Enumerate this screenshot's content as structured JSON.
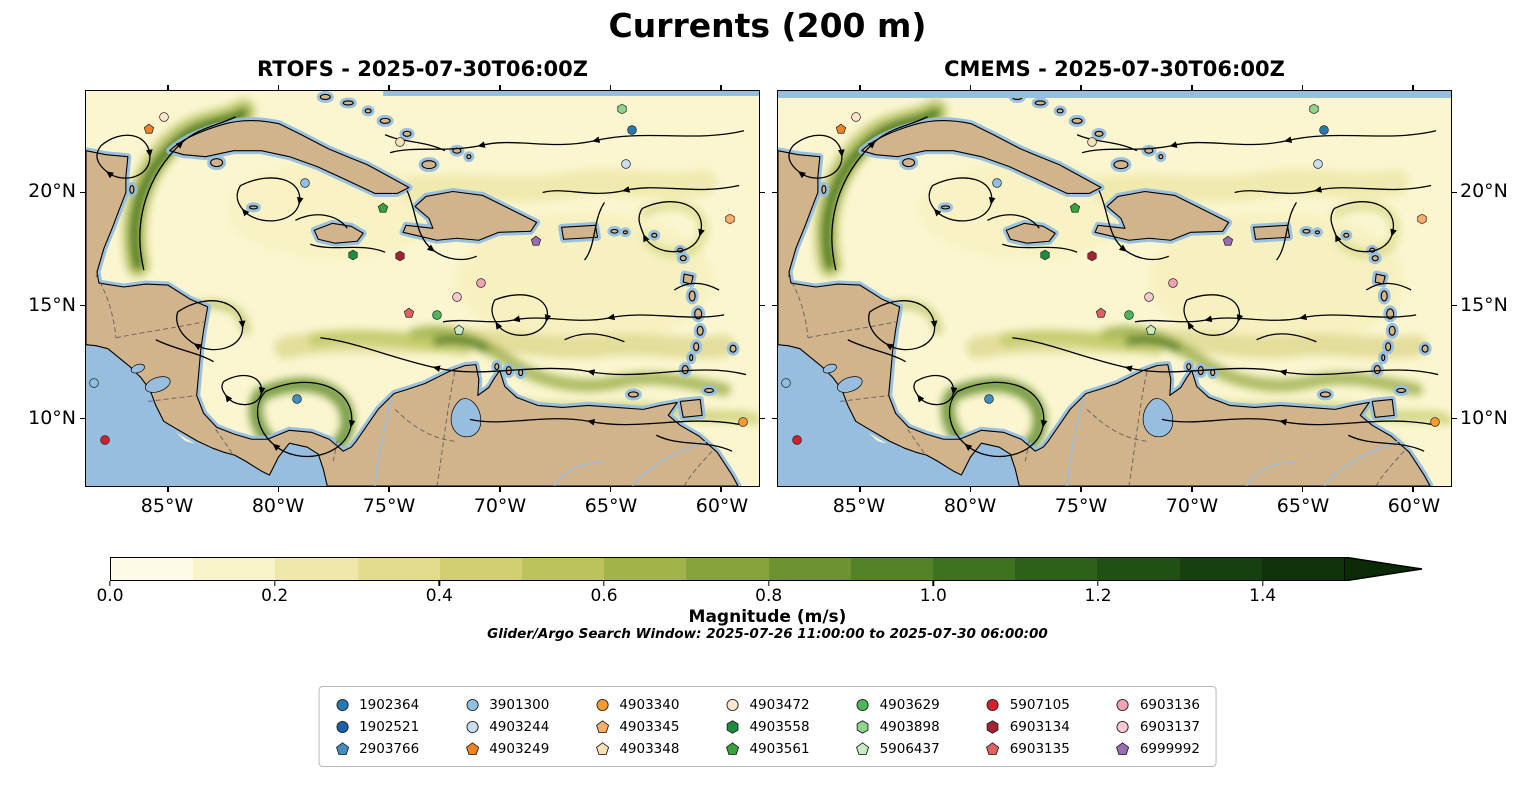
{
  "title": "Currents (200 m)",
  "panels": [
    {
      "model": "RTOFS",
      "title": "RTOFS - 2025-07-30T06:00Z"
    },
    {
      "model": "CMEMS",
      "title": "CMEMS - 2025-07-30T06:00Z"
    }
  ],
  "axes": {
    "lat_ticks": [
      "20°N",
      "15°N",
      "10°N"
    ],
    "lon_ticks": [
      "85°W",
      "80°W",
      "75°W",
      "70°W",
      "65°W",
      "60°W"
    ]
  },
  "colorbar": {
    "label": "Magnitude (m/s)",
    "ticks": [
      "0.0",
      "0.2",
      "0.4",
      "0.6",
      "0.8",
      "1.0",
      "1.2",
      "1.4"
    ],
    "vmin": 0.0,
    "vmax": 1.5,
    "extend": "max",
    "colors": [
      "#fdfbe5",
      "#f8f3c8",
      "#efe8aa",
      "#e3db8d",
      "#d2cf73",
      "#bcc35d",
      "#a2b34a",
      "#87a33b",
      "#6c9330",
      "#538326",
      "#3e721e",
      "#2d6118",
      "#205013",
      "#16400f",
      "#0f320b"
    ],
    "arrow_color": "#0a2a08"
  },
  "search_window_note": "Glider/Argo Search Window: 2025-07-26 11:00:00 to 2025-07-30 06:00:00",
  "map_colors": {
    "land": "#d2b48c",
    "no_data_ocean": "#97bede",
    "coastline": "#000000",
    "streamline": "#000000"
  },
  "legend": {
    "entries": [
      {
        "id": "1902364",
        "marker": "circle",
        "color": "#2678b2"
      },
      {
        "id": "1902521",
        "marker": "circle",
        "color": "#1b5fa5"
      },
      {
        "id": "2903766",
        "marker": "pentagon",
        "color": "#3f8fc5"
      },
      {
        "id": "3901300",
        "marker": "circle",
        "color": "#8ec0e2"
      },
      {
        "id": "4903244",
        "marker": "circle",
        "color": "#c9dff0"
      },
      {
        "id": "4903249",
        "marker": "pentagon",
        "color": "#f58220"
      },
      {
        "id": "4903340",
        "marker": "circle",
        "color": "#fd9b30"
      },
      {
        "id": "4903345",
        "marker": "pentagon",
        "color": "#fdae6b"
      },
      {
        "id": "4903348",
        "marker": "pentagon",
        "color": "#fbe0b8"
      },
      {
        "id": "4903472",
        "marker": "circle",
        "color": "#fde6cd"
      },
      {
        "id": "4903558",
        "marker": "hexagon",
        "color": "#1e8c3e"
      },
      {
        "id": "4903561",
        "marker": "pentagon",
        "color": "#39a23c"
      },
      {
        "id": "4903629",
        "marker": "circle",
        "color": "#4cb75a"
      },
      {
        "id": "4903898",
        "marker": "hexagon",
        "color": "#8fd48c"
      },
      {
        "id": "5906437",
        "marker": "pentagon",
        "color": "#c9ecc2"
      },
      {
        "id": "5907105",
        "marker": "circle",
        "color": "#d31f2e"
      },
      {
        "id": "6903134",
        "marker": "hexagon",
        "color": "#a32332"
      },
      {
        "id": "6903135",
        "marker": "pentagon",
        "color": "#e2615e"
      },
      {
        "id": "6903136",
        "marker": "circle",
        "color": "#f2a3b3"
      },
      {
        "id": "6903137",
        "marker": "circle",
        "color": "#f9c9d2"
      },
      {
        "id": "6999992",
        "marker": "pentagon",
        "color": "#9a6ab2"
      }
    ]
  },
  "map_markers": [
    {
      "shape": "pentagon",
      "color": "#f58220",
      "x": 9.3,
      "y": 9.6
    },
    {
      "shape": "circle",
      "color": "#fde6cd",
      "x": 11.6,
      "y": 6.6
    },
    {
      "shape": "circle",
      "color": "#fbe0b8",
      "x": 46.7,
      "y": 12.8
    },
    {
      "shape": "hexagon",
      "color": "#8fd48c",
      "x": 79.6,
      "y": 4.5
    },
    {
      "shape": "circle",
      "color": "#2678b2",
      "x": 81.2,
      "y": 9.8
    },
    {
      "shape": "circle",
      "color": "#c9dff0",
      "x": 80.3,
      "y": 18.4
    },
    {
      "shape": "circle",
      "color": "#8ec0e2",
      "x": 32.6,
      "y": 23.4
    },
    {
      "shape": "pentagon",
      "color": "#39a23c",
      "x": 44.1,
      "y": 29.5
    },
    {
      "shape": "hexagon",
      "color": "#fdae6b",
      "x": 95.7,
      "y": 32.5
    },
    {
      "shape": "pentagon",
      "color": "#9a6ab2",
      "x": 66.8,
      "y": 38.0
    },
    {
      "shape": "hexagon",
      "color": "#1e8c3e",
      "x": 39.6,
      "y": 41.6
    },
    {
      "shape": "hexagon",
      "color": "#a32332",
      "x": 46.7,
      "y": 41.8
    },
    {
      "shape": "circle",
      "color": "#f2a3b3",
      "x": 58.7,
      "y": 48.6
    },
    {
      "shape": "circle",
      "color": "#f9c9d2",
      "x": 55.1,
      "y": 52.1
    },
    {
      "shape": "pentagon",
      "color": "#e2615e",
      "x": 48.0,
      "y": 56.2
    },
    {
      "shape": "circle",
      "color": "#4cb75a",
      "x": 52.1,
      "y": 56.7
    },
    {
      "shape": "pentagon",
      "color": "#c9ecc2",
      "x": 55.4,
      "y": 60.5
    },
    {
      "shape": "circle",
      "color": "#8ec0e2",
      "x": 1.2,
      "y": 73.8
    },
    {
      "shape": "circle",
      "color": "#3f8fc5",
      "x": 31.3,
      "y": 78.1
    },
    {
      "shape": "circle",
      "color": "#d31f2e",
      "x": 2.8,
      "y": 88.4
    },
    {
      "shape": "circle",
      "color": "#fd9b30",
      "x": 97.6,
      "y": 83.9
    }
  ]
}
